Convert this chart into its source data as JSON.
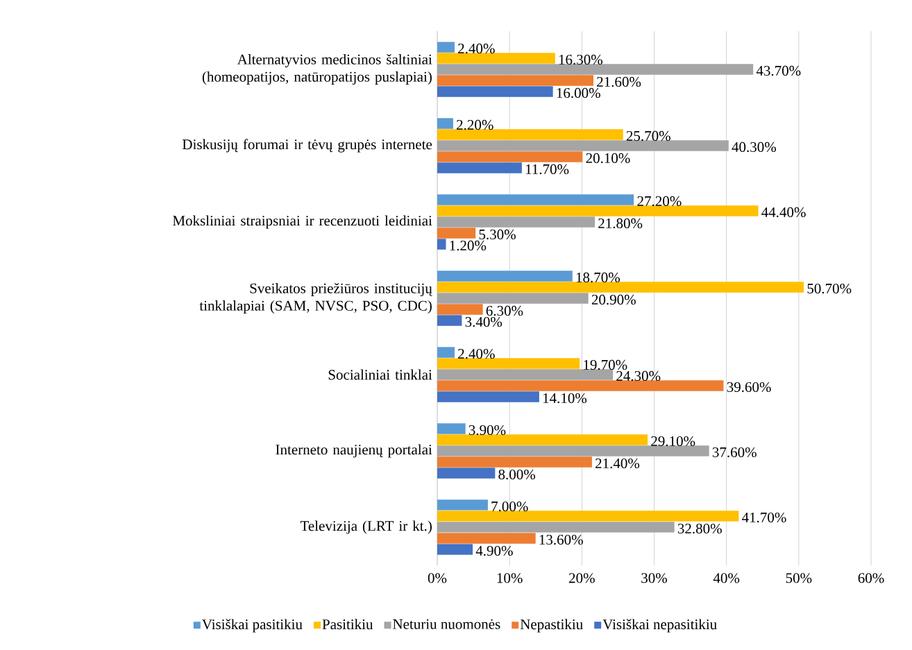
{
  "chart_data": {
    "type": "bar",
    "orientation": "horizontal",
    "categories": [
      "Alternatyvios medicinos šaltiniai (homeopatijos, natūropatijos puslapiai)",
      "Diskusijų forumai ir tėvų grupės internete",
      "Moksliniai straipsniai ir recenzuoti leidiniai",
      "Sveikatos priežiūros institucijų tinklalapiai (SAM, NVSC, PSO, CDC)",
      "Socialiniai tinklai",
      "Interneto naujienų portalai",
      "Televizija (LRT ir kt.)"
    ],
    "series": [
      {
        "name": "Visiškai pasitikiu",
        "color": "#5b9bd5",
        "values": [
          2.4,
          2.2,
          27.2,
          18.7,
          2.4,
          3.9,
          7.0
        ],
        "value_labels": [
          "2.40%",
          "2.20%",
          "27.20%",
          "18.70%",
          "2.40%",
          "3.90%",
          "7.00%"
        ]
      },
      {
        "name": "Pasitikiu",
        "color": "#ffc000",
        "values": [
          16.3,
          25.7,
          44.4,
          50.7,
          19.7,
          29.1,
          41.7
        ],
        "value_labels": [
          "16.30%",
          "25.70%",
          "44.40%",
          "50.70%",
          "19.70%",
          "29.10%",
          "41.70%"
        ]
      },
      {
        "name": "Neturiu nuomonės",
        "color": "#a5a5a5",
        "values": [
          43.7,
          40.3,
          21.8,
          20.9,
          24.3,
          37.6,
          32.8
        ],
        "value_labels": [
          "43.70%",
          "40.30%",
          "21.80%",
          "20.90%",
          "24.30%",
          "37.60%",
          "32.80%"
        ]
      },
      {
        "name": "Nepastikiu",
        "color": "#ed7d31",
        "values": [
          21.6,
          20.1,
          5.3,
          6.3,
          39.6,
          21.4,
          13.6
        ],
        "value_labels": [
          "21.60%",
          "20.10%",
          "5.30%",
          "6.30%",
          "39.60%",
          "21.40%",
          "13.60%"
        ]
      },
      {
        "name": "Visiškai nepasitikiu",
        "color": "#4472c4",
        "values": [
          16.0,
          11.7,
          1.2,
          3.4,
          14.1,
          8.0,
          4.9
        ],
        "value_labels": [
          "16.00%",
          "11.70%",
          "1.20%",
          "3.40%",
          "14.10%",
          "8.00%",
          "4.90%"
        ]
      }
    ],
    "xlim": [
      0,
      60
    ],
    "xticks": [
      {
        "value": 0,
        "label": "0%"
      },
      {
        "value": 10,
        "label": "10%"
      },
      {
        "value": 20,
        "label": "20%"
      },
      {
        "value": 30,
        "label": "30%"
      },
      {
        "value": 40,
        "label": "40%"
      },
      {
        "value": 50,
        "label": "50%"
      },
      {
        "value": 60,
        "label": "60%"
      }
    ],
    "grid": "x",
    "legend": "bottom"
  }
}
